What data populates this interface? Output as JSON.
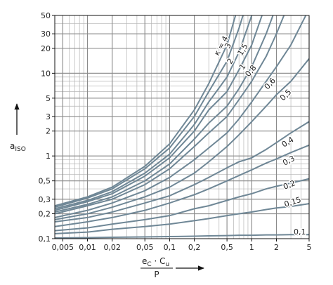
{
  "chart_data": {
    "type": "line",
    "ylabel": "a",
    "ylabel_sub": "ISO",
    "xlabel": {
      "numerator": [
        "e",
        "C",
        " · C",
        "u"
      ],
      "denominator": "P"
    },
    "log_x": true,
    "log_y": true,
    "grid": true,
    "minor_grid": true,
    "xlim": [
      0.004,
      5
    ],
    "ylim": [
      0.1,
      50
    ],
    "xticks": [
      {
        "value": 0.005,
        "label": "0,005"
      },
      {
        "value": 0.01,
        "label": "0,01"
      },
      {
        "value": 0.02,
        "label": "0,02"
      },
      {
        "value": 0.05,
        "label": "0,05"
      },
      {
        "value": 0.1,
        "label": "0,1"
      },
      {
        "value": 0.2,
        "label": "0,2"
      },
      {
        "value": 0.5,
        "label": "0,5"
      },
      1,
      2,
      5
    ],
    "yticks": [
      {
        "value": 0.1,
        "label": "0,1"
      },
      {
        "value": 0.2,
        "label": "0,2"
      },
      {
        "value": 0.3,
        "label": "0,3"
      },
      {
        "value": 0.5,
        "label": "0,5"
      },
      1,
      2,
      3,
      5,
      10,
      20,
      30,
      50
    ],
    "x": [
      0.004,
      0.01,
      0.02,
      0.05,
      0.1,
      0.2,
      0.3,
      0.5,
      0.7,
      1,
      1.5,
      2,
      3,
      5
    ],
    "series": [
      {
        "name": "κ = 4",
        "color": "#6f8796",
        "values": [
          0.25,
          0.32,
          0.42,
          0.75,
          1.4,
          3.6,
          7.5,
          22,
          70,
          null,
          null,
          null,
          null,
          null
        ]
      },
      {
        "name": "3",
        "color": "#6f8796",
        "values": [
          0.24,
          0.31,
          0.4,
          0.7,
          1.25,
          3.0,
          6,
          14,
          35,
          110,
          null,
          null,
          null,
          null
        ]
      },
      {
        "name": "2",
        "color": "#6f8796",
        "values": [
          0.23,
          0.29,
          0.37,
          0.62,
          1.05,
          2.4,
          4.5,
          9,
          18,
          50,
          150,
          null,
          null,
          null
        ]
      },
      {
        "name": "1,5",
        "color": "#6f8796",
        "values": [
          0.22,
          0.28,
          0.35,
          0.57,
          0.95,
          2.0,
          3.6,
          6,
          11,
          22,
          70,
          null,
          null,
          null
        ]
      },
      {
        "name": "1",
        "color": "#6f8796",
        "values": [
          0.21,
          0.26,
          0.32,
          0.5,
          0.8,
          1.6,
          2.5,
          4,
          6.5,
          12,
          30,
          65,
          null,
          null
        ]
      },
      {
        "name": "0,8",
        "color": "#6f8796",
        "values": [
          0.2,
          0.25,
          0.3,
          0.45,
          0.7,
          1.3,
          1.9,
          3,
          4.8,
          8,
          16,
          30,
          80,
          null
        ]
      },
      {
        "name": "0,6",
        "color": "#6f8796",
        "values": [
          0.18,
          0.22,
          0.27,
          0.38,
          0.55,
          0.9,
          1.25,
          1.9,
          2.8,
          4.5,
          8,
          12,
          22,
          60
        ]
      },
      {
        "name": "0,5",
        "color": "#6f8796",
        "values": [
          0.17,
          0.2,
          0.24,
          0.32,
          0.42,
          0.62,
          0.85,
          1.3,
          1.8,
          2.6,
          4,
          5.5,
          8,
          15
        ]
      },
      {
        "name": "0,4",
        "color": "#6f8796",
        "values": [
          0.16,
          0.18,
          0.21,
          0.27,
          0.33,
          0.45,
          0.55,
          0.72,
          0.85,
          0.95,
          1.2,
          1.45,
          1.9,
          2.6
        ]
      },
      {
        "name": "0,3",
        "color": "#6f8796",
        "values": [
          0.14,
          0.16,
          0.18,
          0.22,
          0.27,
          0.34,
          0.4,
          0.5,
          0.58,
          0.68,
          0.82,
          0.92,
          1.1,
          1.35
        ]
      },
      {
        "name": "0,2",
        "color": "#6f8796",
        "values": [
          0.125,
          0.135,
          0.15,
          0.17,
          0.19,
          0.23,
          0.25,
          0.29,
          0.32,
          0.35,
          0.4,
          0.43,
          0.47,
          0.53
        ]
      },
      {
        "name": "0,15",
        "color": "#6f8796",
        "values": [
          0.115,
          0.12,
          0.13,
          0.14,
          0.15,
          0.165,
          0.175,
          0.19,
          0.2,
          0.21,
          0.225,
          0.235,
          0.245,
          0.265
        ]
      },
      {
        "name": "0,1",
        "color": "#6f8796",
        "values": [
          0.102,
          0.103,
          0.104,
          0.105,
          0.106,
          0.107,
          0.108,
          0.109,
          0.11,
          0.11,
          0.111,
          0.111,
          0.112,
          0.112
        ]
      }
    ]
  }
}
